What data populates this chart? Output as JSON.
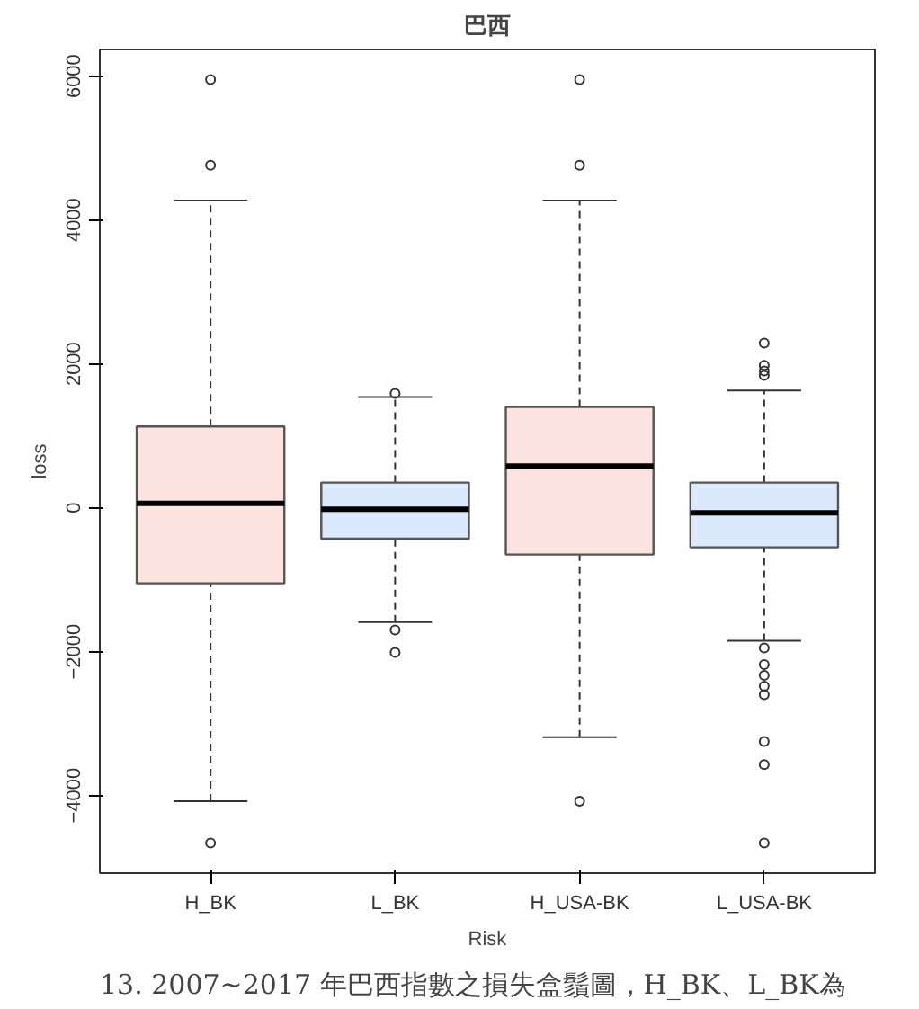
{
  "chart_data": {
    "type": "box",
    "title": "巴西",
    "xlabel": "Risk",
    "ylabel": "loss",
    "categories": [
      "H_BK",
      "L_BK",
      "H_USA-BK",
      "L_USA-BK"
    ],
    "colors": [
      "#fde3df",
      "#dce8fb",
      "#fde3df",
      "#dce8fb"
    ],
    "boxes": [
      {
        "low": -4080,
        "q1": -1050,
        "median": 60,
        "q3": 1130,
        "high": 4270,
        "outliers": [
          5950,
          4760,
          -4660
        ]
      },
      {
        "low": -1590,
        "q1": -430,
        "median": -20,
        "q3": 350,
        "high": 1540,
        "outliers": [
          1590,
          -1700,
          -2010
        ]
      },
      {
        "low": -3190,
        "q1": -650,
        "median": 580,
        "q3": 1400,
        "high": 4270,
        "outliers": [
          5950,
          4760,
          -4080
        ]
      },
      {
        "low": -1850,
        "q1": -550,
        "median": -70,
        "q3": 350,
        "high": 1630,
        "outliers": [
          2290,
          1980,
          1900,
          1840,
          -1950,
          -2180,
          -2330,
          -2480,
          -2600,
          -3250,
          -3570,
          -4660
        ]
      }
    ],
    "ylim": [
      -5080,
      6370
    ],
    "yticks": [
      -4000,
      -2000,
      0,
      2000,
      4000,
      6000
    ],
    "marker": "circle",
    "annotations": [
      "13. 2007~2017 年巴西指數之損失盒鬚圖，H_BK、L_BK為"
    ]
  }
}
